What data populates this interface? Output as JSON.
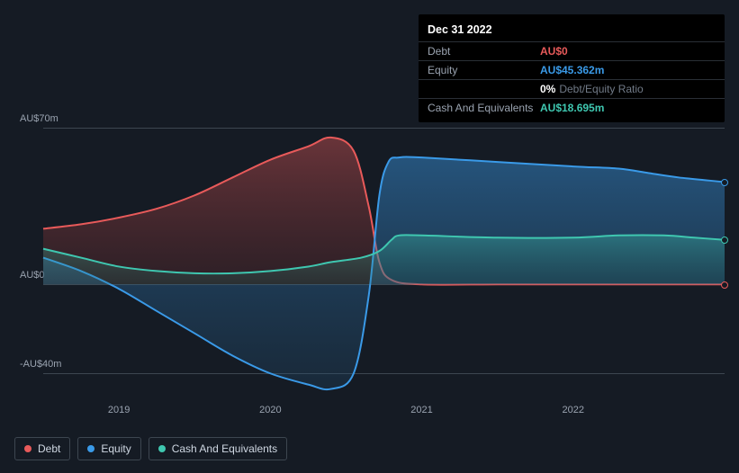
{
  "tooltip": {
    "title": "Dec 31 2022",
    "rows": [
      {
        "label": "Debt",
        "value": "AU$0",
        "color": "#e85a5a"
      },
      {
        "label": "Equity",
        "value": "AU$45.362m",
        "color": "#3a9ae8"
      },
      {
        "label": "",
        "value": "0%",
        "extra": "Debt/Equity Ratio",
        "color": "#ffffff"
      },
      {
        "label": "Cash And Equivalents",
        "value": "AU$18.695m",
        "color": "#3fc7b0"
      }
    ]
  },
  "chart": {
    "type": "area",
    "background_color": "#151b24",
    "grid_color": "#3d4650",
    "y_axis": {
      "min": -50,
      "max": 70,
      "ticks": [
        {
          "v": 70,
          "label": "AU$70m"
        },
        {
          "v": 0,
          "label": "AU$0"
        },
        {
          "v": -40,
          "label": "-AU$40m"
        }
      ]
    },
    "x_axis": {
      "min": 2018.5,
      "max": 2023.0,
      "ticks": [
        {
          "v": 2019,
          "label": "2019"
        },
        {
          "v": 2020,
          "label": "2020"
        },
        {
          "v": 2021,
          "label": "2021"
        },
        {
          "v": 2022,
          "label": "2022"
        }
      ]
    },
    "series": [
      {
        "name": "Debt",
        "color": "#e85a5a",
        "color_dark": "#7a2e2e",
        "fill_opacity": 0.4,
        "points": [
          [
            2018.5,
            25
          ],
          [
            2018.75,
            27
          ],
          [
            2019.0,
            30
          ],
          [
            2019.25,
            34
          ],
          [
            2019.5,
            40
          ],
          [
            2019.75,
            48
          ],
          [
            2020.0,
            56
          ],
          [
            2020.25,
            62
          ],
          [
            2020.4,
            66
          ],
          [
            2020.55,
            60
          ],
          [
            2020.65,
            35
          ],
          [
            2020.72,
            10
          ],
          [
            2020.8,
            2
          ],
          [
            2021.0,
            0
          ],
          [
            2021.5,
            0
          ],
          [
            2022.0,
            0
          ],
          [
            2022.5,
            0
          ],
          [
            2023.0,
            0
          ]
        ]
      },
      {
        "name": "Equity",
        "color": "#3a9ae8",
        "color_dark": "#234f72",
        "fill_opacity": 0.45,
        "points": [
          [
            2018.5,
            12
          ],
          [
            2018.75,
            6
          ],
          [
            2019.0,
            -2
          ],
          [
            2019.25,
            -12
          ],
          [
            2019.5,
            -22
          ],
          [
            2019.75,
            -32
          ],
          [
            2020.0,
            -40
          ],
          [
            2020.25,
            -45
          ],
          [
            2020.4,
            -47
          ],
          [
            2020.55,
            -40
          ],
          [
            2020.65,
            -5
          ],
          [
            2020.72,
            40
          ],
          [
            2020.78,
            55
          ],
          [
            2020.85,
            57
          ],
          [
            2021.0,
            57
          ],
          [
            2021.5,
            55
          ],
          [
            2022.0,
            53
          ],
          [
            2022.3,
            52
          ],
          [
            2022.5,
            50
          ],
          [
            2022.7,
            48
          ],
          [
            2023.0,
            46
          ]
        ]
      },
      {
        "name": "Cash And Equivalents",
        "color": "#3fc7b0",
        "color_dark": "#256a5e",
        "fill_opacity": 0.35,
        "points": [
          [
            2018.5,
            16
          ],
          [
            2018.75,
            12
          ],
          [
            2019.0,
            8
          ],
          [
            2019.25,
            6
          ],
          [
            2019.5,
            5
          ],
          [
            2019.75,
            5
          ],
          [
            2020.0,
            6
          ],
          [
            2020.25,
            8
          ],
          [
            2020.4,
            10
          ],
          [
            2020.6,
            12
          ],
          [
            2020.72,
            15
          ],
          [
            2020.8,
            20
          ],
          [
            2020.85,
            22
          ],
          [
            2021.0,
            22
          ],
          [
            2021.5,
            21
          ],
          [
            2022.0,
            21
          ],
          [
            2022.3,
            22
          ],
          [
            2022.6,
            22
          ],
          [
            2022.8,
            21
          ],
          [
            2023.0,
            20
          ]
        ]
      }
    ]
  },
  "legend": {
    "items": [
      {
        "label": "Debt",
        "color": "#e85a5a"
      },
      {
        "label": "Equity",
        "color": "#3a9ae8"
      },
      {
        "label": "Cash And Equivalents",
        "color": "#3fc7b0"
      }
    ]
  }
}
